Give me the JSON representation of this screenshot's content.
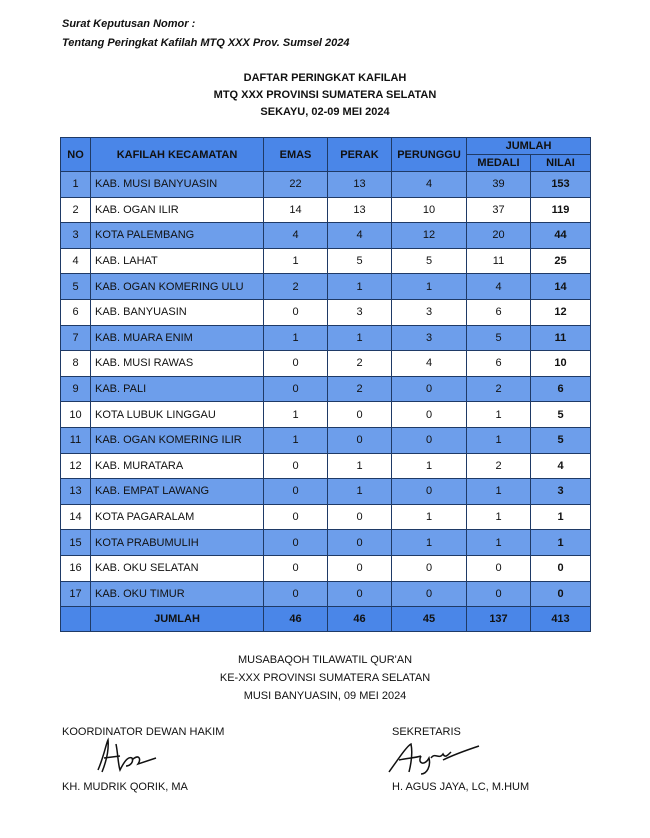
{
  "header": {
    "line1": "Surat Keputusan Nomor :",
    "line2": "Tentang Peringkat Kafilah MTQ XXX Prov. Sumsel 2024"
  },
  "title": {
    "line1": "DAFTAR PERINGKAT KAFILAH",
    "line2": "MTQ XXX PROVINSI SUMATERA SELATAN",
    "line3": "SEKAYU, 02-09 MEI 2024"
  },
  "table": {
    "columns": {
      "no": "NO",
      "kafilah": "KAFILAH KECAMATAN",
      "emas": "EMAS",
      "perak": "PERAK",
      "perunggu": "PERUNGGU",
      "jumlah": "JUMLAH",
      "medali": "MEDALI",
      "nilai": "NILAI"
    },
    "rows": [
      [
        "1",
        "KAB. MUSI BANYUASIN",
        "22",
        "13",
        "4",
        "39",
        "153"
      ],
      [
        "2",
        "KAB. OGAN ILIR",
        "14",
        "13",
        "10",
        "37",
        "119"
      ],
      [
        "3",
        "KOTA PALEMBANG",
        "4",
        "4",
        "12",
        "20",
        "44"
      ],
      [
        "4",
        "KAB. LAHAT",
        "1",
        "5",
        "5",
        "11",
        "25"
      ],
      [
        "5",
        "KAB. OGAN KOMERING ULU",
        "2",
        "1",
        "1",
        "4",
        "14"
      ],
      [
        "6",
        "KAB. BANYUASIN",
        "0",
        "3",
        "3",
        "6",
        "12"
      ],
      [
        "7",
        "KAB. MUARA ENIM",
        "1",
        "1",
        "3",
        "5",
        "11"
      ],
      [
        "8",
        "KAB. MUSI RAWAS",
        "0",
        "2",
        "4",
        "6",
        "10"
      ],
      [
        "9",
        "KAB. PALI",
        "0",
        "2",
        "0",
        "2",
        "6"
      ],
      [
        "10",
        "KOTA LUBUK LINGGAU",
        "1",
        "0",
        "0",
        "1",
        "5"
      ],
      [
        "11",
        "KAB. OGAN KOMERING ILIR",
        "1",
        "0",
        "0",
        "1",
        "5"
      ],
      [
        "12",
        "KAB. MURATARA",
        "0",
        "1",
        "1",
        "2",
        "4"
      ],
      [
        "13",
        "KAB. EMPAT LAWANG",
        "0",
        "1",
        "0",
        "1",
        "3"
      ],
      [
        "14",
        "KOTA PAGARALAM",
        "0",
        "0",
        "1",
        "1",
        "1"
      ],
      [
        "15",
        "KOTA PRABUMULIH",
        "0",
        "0",
        "1",
        "1",
        "1"
      ],
      [
        "16",
        "KAB. OKU SELATAN",
        "0",
        "0",
        "0",
        "0",
        "0"
      ],
      [
        "17",
        "KAB. OKU TIMUR",
        "0",
        "0",
        "0",
        "0",
        "0"
      ]
    ],
    "total": {
      "label": "JUMLAH",
      "emas": "46",
      "perak": "46",
      "perunggu": "45",
      "medali": "137",
      "nilai": "413"
    },
    "colors": {
      "header": "#4a86e8",
      "odd_row": "#6d9eeb",
      "even_row": "#ffffff"
    }
  },
  "footer": {
    "line1": "MUSABAQOH TILAWATIL QUR'AN",
    "line2": "KE-XXX PROVINSI SUMATERA SELATAN",
    "line3": "MUSI BANYUASIN, 09 MEI 2024"
  },
  "signatures": [
    {
      "role": "KOORDINATOR DEWAN HAKIM",
      "name": "KH. MUDRIK QORIK, MA"
    },
    {
      "role": "SEKRETARIS",
      "name": "H. AGUS JAYA, LC, M.HUM"
    }
  ]
}
